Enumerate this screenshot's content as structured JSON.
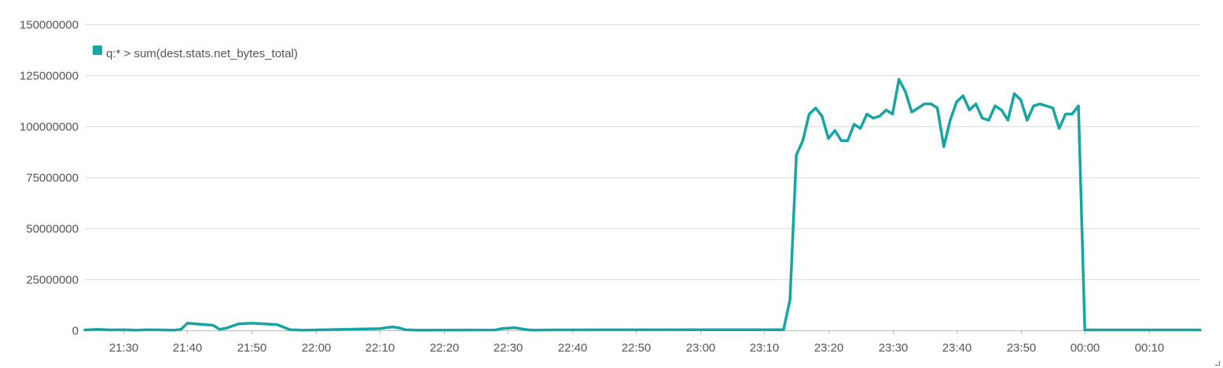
{
  "chart_data": {
    "type": "line",
    "title": "",
    "xlabel": "",
    "ylabel": "",
    "ylim": [
      0,
      150000000
    ],
    "yticks": [
      "0",
      "25000000",
      "50000000",
      "75000000",
      "100000000",
      "125000000",
      "150000000"
    ],
    "xlim": [
      "21:24",
      "00:18"
    ],
    "xticks": [
      "21:30",
      "21:40",
      "21:50",
      "22:00",
      "22:10",
      "22:20",
      "22:30",
      "22:40",
      "22:50",
      "23:00",
      "23:10",
      "23:20",
      "23:30",
      "23:40",
      "23:50",
      "00:00",
      "00:10"
    ],
    "grid": true,
    "legend_position": "top-left",
    "series": [
      {
        "name": "q:* > sum(dest.stats.net_bytes_total)",
        "color": "#16a5a3",
        "x": [
          "21:24",
          "21:26",
          "21:28",
          "21:30",
          "21:32",
          "21:34",
          "21:36",
          "21:38",
          "21:39",
          "21:40",
          "21:42",
          "21:44",
          "21:45",
          "21:46",
          "21:48",
          "21:50",
          "21:52",
          "21:54",
          "21:56",
          "21:58",
          "22:00",
          "22:10",
          "22:11",
          "22:12",
          "22:13",
          "22:14",
          "22:16",
          "22:28",
          "22:29",
          "22:31",
          "22:33",
          "22:34",
          "22:36",
          "23:12",
          "23:13",
          "23:14",
          "23:15",
          "23:16",
          "23:17",
          "23:18",
          "23:19",
          "23:20",
          "23:21",
          "23:22",
          "23:23",
          "23:24",
          "23:25",
          "23:26",
          "23:27",
          "23:28",
          "23:29",
          "23:30",
          "23:31",
          "23:32",
          "23:33",
          "23:34",
          "23:35",
          "23:36",
          "23:37",
          "23:38",
          "23:39",
          "23:40",
          "23:41",
          "23:42",
          "23:43",
          "23:44",
          "23:45",
          "23:46",
          "23:47",
          "23:48",
          "23:49",
          "23:50",
          "23:51",
          "23:52",
          "23:53",
          "23:54",
          "23:55",
          "23:56",
          "23:57",
          "23:58",
          "23:59",
          "00:00",
          "00:18"
        ],
        "values": [
          200000,
          500000,
          200000,
          300000,
          100000,
          300000,
          200000,
          100000,
          500000,
          3500000,
          3000000,
          2500000,
          500000,
          1000000,
          3200000,
          3500000,
          3200000,
          2800000,
          300000,
          100000,
          200000,
          800000,
          1300000,
          1700000,
          1200000,
          300000,
          100000,
          200000,
          800000,
          1300000,
          300000,
          100000,
          200000,
          300000,
          300000,
          15000000,
          86000000,
          93000000,
          106000000,
          109000000,
          105000000,
          94000000,
          98000000,
          93000000,
          93000000,
          101000000,
          99000000,
          106000000,
          104000000,
          105000000,
          108000000,
          106000000,
          123000000,
          117000000,
          107000000,
          109000000,
          111000000,
          111000000,
          109000000,
          90000000,
          103000000,
          112000000,
          115000000,
          108000000,
          111000000,
          104000000,
          103000000,
          110000000,
          108000000,
          103000000,
          116000000,
          113000000,
          103000000,
          110000000,
          111000000,
          110000000,
          109000000,
          99000000,
          106000000,
          106000000,
          110000000,
          200000,
          200000
        ]
      }
    ]
  }
}
